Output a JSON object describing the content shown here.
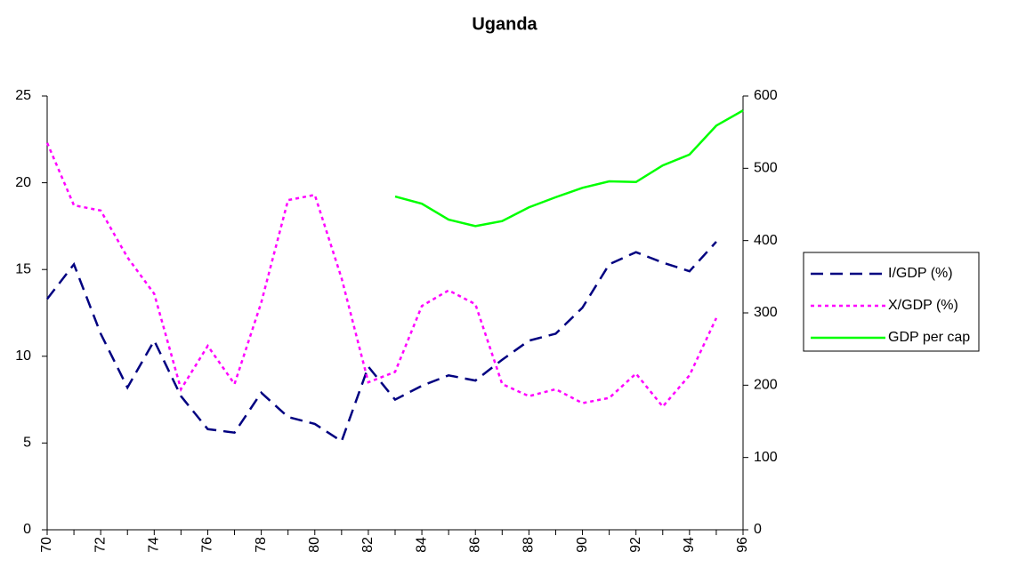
{
  "chart_data": {
    "type": "line",
    "title": "Uganda",
    "x": [
      70,
      71,
      72,
      73,
      74,
      75,
      76,
      77,
      78,
      79,
      80,
      81,
      82,
      83,
      84,
      85,
      86,
      87,
      88,
      89,
      90,
      91,
      92,
      93,
      94,
      95,
      96
    ],
    "xlim": [
      70,
      96
    ],
    "xticks": [
      70,
      72,
      74,
      76,
      78,
      80,
      82,
      84,
      86,
      88,
      90,
      92,
      94,
      96
    ],
    "ylim": [
      0,
      25
    ],
    "yticks": [
      0,
      5,
      10,
      15,
      20,
      25
    ],
    "y2lim": [
      0,
      600
    ],
    "y2ticks": [
      0,
      100,
      200,
      300,
      400,
      500,
      600
    ],
    "legend": "right",
    "series": [
      {
        "name": "I/GDP (%)",
        "color": "#000080",
        "dash": "dashed",
        "values": [
          13.3,
          15.3,
          11.3,
          8.2,
          10.9,
          7.7,
          5.8,
          5.6,
          7.9,
          6.5,
          6.1,
          5.1,
          9.4,
          7.5,
          8.3,
          8.9,
          8.6,
          9.8,
          10.9,
          11.3,
          12.8,
          15.3,
          16.0,
          15.4,
          14.9,
          16.6,
          null
        ]
      },
      {
        "name": "X/GDP (%)",
        "color": "#ff00ff",
        "dash": "dotted",
        "values": [
          22.3,
          18.7,
          18.4,
          15.7,
          13.6,
          8.1,
          10.6,
          8.4,
          13.1,
          19.0,
          19.3,
          14.5,
          8.5,
          9.1,
          12.9,
          13.8,
          13.0,
          8.4,
          7.7,
          8.1,
          7.3,
          7.6,
          9.0,
          7.1,
          8.9,
          12.2,
          null
        ]
      },
      {
        "name": "GDP per cap",
        "color": "#00ff00",
        "dash": "solid",
        "axis": "y2",
        "values": [
          null,
          null,
          null,
          null,
          null,
          null,
          null,
          null,
          null,
          null,
          null,
          null,
          null,
          461,
          451,
          429,
          420,
          427,
          446,
          460,
          473,
          482,
          481,
          504,
          519,
          559,
          580
        ]
      }
    ]
  }
}
